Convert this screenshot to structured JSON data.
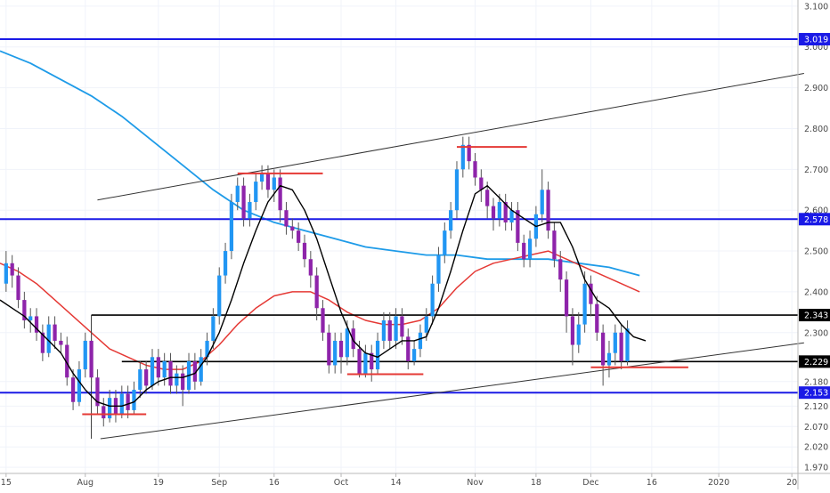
{
  "chart_data": {
    "type": "candlestick",
    "colors": {
      "bull": "#2196f3",
      "bear": "#8e24aa",
      "wick": "#555555",
      "ema_fast": "#000000",
      "ema_mid": "#e53935",
      "ema_slow": "#1e9be8",
      "level_blue": "#1a1ae6",
      "level_black": "#000000",
      "mark_red": "#e53935",
      "trend": "#333333"
    },
    "x_axis": {
      "domain": [
        -1,
        130
      ],
      "ticks": [
        {
          "label": "15",
          "x": 0
        },
        {
          "label": "Aug",
          "x": 13
        },
        {
          "label": "19",
          "x": 25
        },
        {
          "label": "Sep",
          "x": 35
        },
        {
          "label": "16",
          "x": 44
        },
        {
          "label": "Oct",
          "x": 55
        },
        {
          "label": "14",
          "x": 64
        },
        {
          "label": "Nov",
          "x": 77
        },
        {
          "label": "18",
          "x": 87
        },
        {
          "label": "Dec",
          "x": 96
        },
        {
          "label": "16",
          "x": 106
        },
        {
          "label": "2020",
          "x": 117
        },
        {
          "label": "20",
          "x": 129
        }
      ]
    },
    "y_axis": {
      "range": [
        1.955,
        3.115
      ],
      "ticks": [
        "3.100",
        "3.000",
        "2.900",
        "2.800",
        "2.700",
        "2.600",
        "2.500",
        "2.400",
        "2.300",
        "2.180",
        "2.120",
        "2.070",
        "2.020",
        "1.970"
      ]
    },
    "price_tags": [
      {
        "label": "3.019",
        "value": 3.019,
        "color": "#1a1ae6"
      },
      {
        "label": "2.578",
        "value": 2.578,
        "color": "#1a1ae6"
      },
      {
        "label": "2.343",
        "value": 2.343,
        "color": "#000000"
      },
      {
        "label": "2.229",
        "value": 2.229,
        "color": "#000000"
      },
      {
        "label": "2.153",
        "value": 2.153,
        "color": "#1a1ae6"
      }
    ],
    "horizontal_levels": [
      {
        "value": 3.019,
        "x_from": -1,
        "x_to": 130,
        "color": "#1a1ae6",
        "width": 2
      },
      {
        "value": 2.578,
        "x_from": -1,
        "x_to": 130,
        "color": "#1a1ae6",
        "width": 2
      },
      {
        "value": 2.153,
        "x_from": -1,
        "x_to": 130,
        "color": "#1a1ae6",
        "width": 2
      },
      {
        "value": 2.343,
        "x_from": 14,
        "x_to": 130,
        "color": "#000000",
        "width": 1.6
      },
      {
        "value": 2.229,
        "x_from": 19,
        "x_to": 130,
        "color": "#000000",
        "width": 1.6
      }
    ],
    "red_marks": [
      {
        "value": 2.1,
        "x_from": 12.5,
        "x_to": 23
      },
      {
        "value": 2.69,
        "x_from": 38,
        "x_to": 52
      },
      {
        "value": 2.198,
        "x_from": 56,
        "x_to": 68.5
      },
      {
        "value": 2.755,
        "x_from": 74,
        "x_to": 85.5
      },
      {
        "value": 2.215,
        "x_from": 96,
        "x_to": 112
      }
    ],
    "trend_lines": [
      {
        "from": [
          15,
          2.625
        ],
        "to": [
          131,
          2.935
        ]
      },
      {
        "from": [
          15.5,
          2.04
        ],
        "to": [
          131,
          2.275
        ]
      },
      {
        "from": [
          14,
          2.04
        ],
        "to": [
          14,
          2.343
        ]
      }
    ],
    "candles": [
      [
        2.42,
        2.47,
        2.5,
        2.4
      ],
      [
        2.47,
        2.44,
        2.49,
        2.41
      ],
      [
        2.44,
        2.38,
        2.46,
        2.36
      ],
      [
        2.38,
        2.33,
        2.4,
        2.31
      ],
      [
        2.33,
        2.34,
        2.36,
        2.3
      ],
      [
        2.34,
        2.3,
        2.36,
        2.28
      ],
      [
        2.3,
        2.25,
        2.32,
        2.23
      ],
      [
        2.25,
        2.32,
        2.34,
        2.24
      ],
      [
        2.32,
        2.28,
        2.34,
        2.26
      ],
      [
        2.28,
        2.27,
        2.3,
        2.25
      ],
      [
        2.27,
        2.19,
        2.29,
        2.17
      ],
      [
        2.19,
        2.13,
        2.21,
        2.11
      ],
      [
        2.13,
        2.21,
        2.23,
        2.12
      ],
      [
        2.21,
        2.28,
        2.3,
        2.19
      ],
      [
        2.28,
        2.19,
        2.3,
        2.17
      ],
      [
        2.19,
        2.12,
        2.21,
        2.1
      ],
      [
        2.12,
        2.09,
        2.14,
        2.07
      ],
      [
        2.09,
        2.14,
        2.16,
        2.08
      ],
      [
        2.14,
        2.1,
        2.16,
        2.08
      ],
      [
        2.1,
        2.15,
        2.17,
        2.09
      ],
      [
        2.15,
        2.11,
        2.17,
        2.09
      ],
      [
        2.11,
        2.16,
        2.18,
        2.1
      ],
      [
        2.16,
        2.21,
        2.23,
        2.14
      ],
      [
        2.21,
        2.17,
        2.23,
        2.15
      ],
      [
        2.17,
        2.24,
        2.26,
        2.16
      ],
      [
        2.24,
        2.19,
        2.26,
        2.17
      ],
      [
        2.19,
        2.23,
        2.25,
        2.17
      ],
      [
        2.23,
        2.17,
        2.25,
        2.15
      ],
      [
        2.17,
        2.2,
        2.22,
        2.15
      ],
      [
        2.2,
        2.16,
        2.22,
        2.12
      ],
      [
        2.16,
        2.23,
        2.25,
        2.15
      ],
      [
        2.23,
        2.18,
        2.25,
        2.16
      ],
      [
        2.18,
        2.24,
        2.26,
        2.17
      ],
      [
        2.24,
        2.28,
        2.3,
        2.22
      ],
      [
        2.28,
        2.34,
        2.36,
        2.26
      ],
      [
        2.34,
        2.44,
        2.46,
        2.32
      ],
      [
        2.44,
        2.5,
        2.52,
        2.42
      ],
      [
        2.5,
        2.62,
        2.64,
        2.48
      ],
      [
        2.62,
        2.66,
        2.68,
        2.6
      ],
      [
        2.66,
        2.58,
        2.68,
        2.56
      ],
      [
        2.58,
        2.62,
        2.64,
        2.56
      ],
      [
        2.62,
        2.67,
        2.69,
        2.6
      ],
      [
        2.67,
        2.69,
        2.71,
        2.65
      ],
      [
        2.69,
        2.65,
        2.71,
        2.63
      ],
      [
        2.65,
        2.68,
        2.7,
        2.62
      ],
      [
        2.68,
        2.6,
        2.7,
        2.57
      ],
      [
        2.6,
        2.56,
        2.62,
        2.54
      ],
      [
        2.56,
        2.55,
        2.58,
        2.53
      ],
      [
        2.55,
        2.52,
        2.57,
        2.5
      ],
      [
        2.52,
        2.48,
        2.54,
        2.46
      ],
      [
        2.48,
        2.44,
        2.5,
        2.41
      ],
      [
        2.44,
        2.36,
        2.46,
        2.33
      ],
      [
        2.36,
        2.3,
        2.38,
        2.28
      ],
      [
        2.3,
        2.22,
        2.32,
        2.2
      ],
      [
        2.22,
        2.28,
        2.3,
        2.2
      ],
      [
        2.28,
        2.24,
        2.3,
        2.2
      ],
      [
        2.24,
        2.31,
        2.33,
        2.22
      ],
      [
        2.31,
        2.26,
        2.33,
        2.24
      ],
      [
        2.26,
        2.2,
        2.28,
        2.19
      ],
      [
        2.2,
        2.25,
        2.27,
        2.19
      ],
      [
        2.25,
        2.21,
        2.27,
        2.18
      ],
      [
        2.21,
        2.28,
        2.3,
        2.2
      ],
      [
        2.28,
        2.33,
        2.35,
        2.26
      ],
      [
        2.33,
        2.28,
        2.35,
        2.26
      ],
      [
        2.28,
        2.34,
        2.36,
        2.26
      ],
      [
        2.34,
        2.29,
        2.36,
        2.27
      ],
      [
        2.29,
        2.23,
        2.31,
        2.21
      ],
      [
        2.23,
        2.26,
        2.28,
        2.22
      ],
      [
        2.26,
        2.3,
        2.32,
        2.24
      ],
      [
        2.3,
        2.34,
        2.36,
        2.28
      ],
      [
        2.34,
        2.42,
        2.44,
        2.32
      ],
      [
        2.42,
        2.49,
        2.51,
        2.4
      ],
      [
        2.49,
        2.55,
        2.57,
        2.47
      ],
      [
        2.55,
        2.6,
        2.62,
        2.53
      ],
      [
        2.6,
        2.7,
        2.72,
        2.58
      ],
      [
        2.7,
        2.76,
        2.78,
        2.68
      ],
      [
        2.76,
        2.72,
        2.78,
        2.7
      ],
      [
        2.72,
        2.68,
        2.74,
        2.66
      ],
      [
        2.68,
        2.65,
        2.7,
        2.62
      ],
      [
        2.65,
        2.61,
        2.67,
        2.58
      ],
      [
        2.61,
        2.58,
        2.63,
        2.55
      ],
      [
        2.58,
        2.62,
        2.64,
        2.56
      ],
      [
        2.62,
        2.57,
        2.64,
        2.55
      ],
      [
        2.57,
        2.6,
        2.62,
        2.55
      ],
      [
        2.6,
        2.52,
        2.62,
        2.5
      ],
      [
        2.52,
        2.48,
        2.54,
        2.46
      ],
      [
        2.48,
        2.53,
        2.55,
        2.46
      ],
      [
        2.53,
        2.59,
        2.61,
        2.51
      ],
      [
        2.59,
        2.65,
        2.7,
        2.57
      ],
      [
        2.65,
        2.55,
        2.67,
        2.53
      ],
      [
        2.55,
        2.48,
        2.57,
        2.46
      ],
      [
        2.48,
        2.43,
        2.5,
        2.4
      ],
      [
        2.43,
        2.34,
        2.45,
        2.3
      ],
      [
        2.34,
        2.27,
        2.36,
        2.22
      ],
      [
        2.27,
        2.32,
        2.35,
        2.25
      ],
      [
        2.32,
        2.42,
        2.45,
        2.3
      ],
      [
        2.42,
        2.37,
        2.44,
        2.34
      ],
      [
        2.37,
        2.3,
        2.39,
        2.28
      ],
      [
        2.3,
        2.22,
        2.32,
        2.17
      ],
      [
        2.22,
        2.25,
        2.28,
        2.19
      ],
      [
        2.25,
        2.3,
        2.32,
        2.22
      ],
      [
        2.3,
        2.23,
        2.32,
        2.21
      ],
      [
        2.23,
        2.31,
        2.33,
        2.22
      ]
    ],
    "ema_fast": [
      [
        -1,
        2.38
      ],
      [
        1,
        2.36
      ],
      [
        3,
        2.34
      ],
      [
        5,
        2.31
      ],
      [
        7,
        2.28
      ],
      [
        9,
        2.25
      ],
      [
        11,
        2.2
      ],
      [
        13,
        2.16
      ],
      [
        15,
        2.13
      ],
      [
        17,
        2.12
      ],
      [
        19,
        2.12
      ],
      [
        21,
        2.13
      ],
      [
        23,
        2.16
      ],
      [
        25,
        2.18
      ],
      [
        27,
        2.19
      ],
      [
        29,
        2.19
      ],
      [
        31,
        2.2
      ],
      [
        33,
        2.24
      ],
      [
        35,
        2.3
      ],
      [
        37,
        2.38
      ],
      [
        39,
        2.47
      ],
      [
        41,
        2.55
      ],
      [
        43,
        2.62
      ],
      [
        45,
        2.66
      ],
      [
        47,
        2.65
      ],
      [
        49,
        2.6
      ],
      [
        51,
        2.53
      ],
      [
        53,
        2.44
      ],
      [
        55,
        2.35
      ],
      [
        57,
        2.28
      ],
      [
        59,
        2.25
      ],
      [
        61,
        2.24
      ],
      [
        63,
        2.26
      ],
      [
        65,
        2.28
      ],
      [
        67,
        2.28
      ],
      [
        69,
        2.29
      ],
      [
        71,
        2.36
      ],
      [
        73,
        2.45
      ],
      [
        75,
        2.55
      ],
      [
        77,
        2.64
      ],
      [
        79,
        2.66
      ],
      [
        81,
        2.63
      ],
      [
        83,
        2.6
      ],
      [
        85,
        2.58
      ],
      [
        87,
        2.56
      ],
      [
        89,
        2.57
      ],
      [
        91,
        2.57
      ],
      [
        93,
        2.51
      ],
      [
        95,
        2.43
      ],
      [
        97,
        2.38
      ],
      [
        99,
        2.36
      ],
      [
        101,
        2.32
      ],
      [
        103,
        2.29
      ],
      [
        105,
        2.28
      ]
    ],
    "ema_mid": [
      [
        -1,
        2.47
      ],
      [
        2,
        2.45
      ],
      [
        5,
        2.42
      ],
      [
        8,
        2.38
      ],
      [
        11,
        2.34
      ],
      [
        14,
        2.3
      ],
      [
        17,
        2.26
      ],
      [
        20,
        2.24
      ],
      [
        23,
        2.22
      ],
      [
        26,
        2.21
      ],
      [
        29,
        2.21
      ],
      [
        32,
        2.23
      ],
      [
        35,
        2.27
      ],
      [
        38,
        2.32
      ],
      [
        41,
        2.36
      ],
      [
        44,
        2.39
      ],
      [
        47,
        2.4
      ],
      [
        50,
        2.4
      ],
      [
        53,
        2.38
      ],
      [
        56,
        2.35
      ],
      [
        59,
        2.33
      ],
      [
        62,
        2.32
      ],
      [
        65,
        2.32
      ],
      [
        68,
        2.33
      ],
      [
        71,
        2.36
      ],
      [
        74,
        2.41
      ],
      [
        77,
        2.45
      ],
      [
        80,
        2.47
      ],
      [
        83,
        2.48
      ],
      [
        86,
        2.49
      ],
      [
        89,
        2.5
      ],
      [
        92,
        2.48
      ],
      [
        95,
        2.46
      ],
      [
        98,
        2.44
      ],
      [
        101,
        2.42
      ],
      [
        104,
        2.4
      ]
    ],
    "ema_slow": [
      [
        -1,
        2.99
      ],
      [
        4,
        2.96
      ],
      [
        9,
        2.92
      ],
      [
        14,
        2.88
      ],
      [
        19,
        2.83
      ],
      [
        24,
        2.77
      ],
      [
        29,
        2.71
      ],
      [
        34,
        2.65
      ],
      [
        39,
        2.6
      ],
      [
        44,
        2.57
      ],
      [
        49,
        2.55
      ],
      [
        54,
        2.53
      ],
      [
        59,
        2.51
      ],
      [
        64,
        2.5
      ],
      [
        69,
        2.49
      ],
      [
        74,
        2.49
      ],
      [
        79,
        2.48
      ],
      [
        84,
        2.48
      ],
      [
        89,
        2.48
      ],
      [
        94,
        2.47
      ],
      [
        99,
        2.46
      ],
      [
        104,
        2.44
      ]
    ]
  }
}
